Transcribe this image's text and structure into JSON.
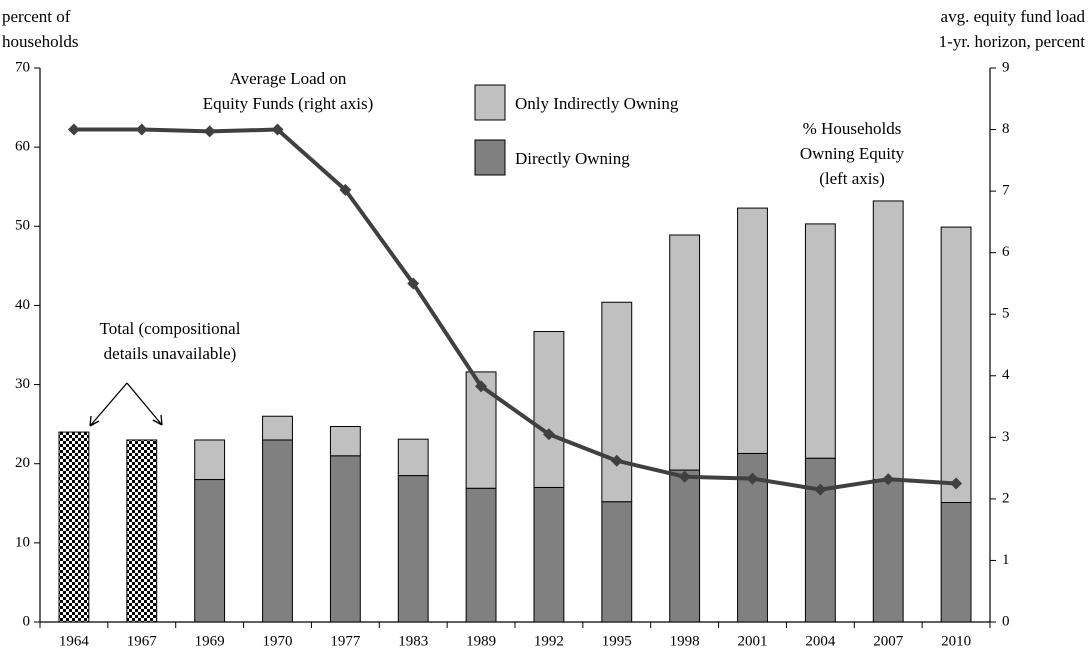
{
  "chart_data": {
    "type": "bar",
    "categories": [
      "1964",
      "1967",
      "1969",
      "1970",
      "1977",
      "1983",
      "1989",
      "1992",
      "1995",
      "1998",
      "2001",
      "2004",
      "2007",
      "2010"
    ],
    "series": [
      {
        "color": "checkered",
        "values": [
          24,
          23,
          null,
          null,
          null,
          null,
          null,
          null,
          null,
          null,
          null,
          null,
          null,
          null
        ]
      },
      {
        "name": "Directly Owning",
        "color": "#808080",
        "values": [
          null,
          null,
          18,
          23,
          21,
          18.5,
          16.9,
          17,
          15.2,
          19.2,
          21.3,
          20.7,
          18,
          15.1
        ]
      },
      {
        "name": "Only Indirectly Owning",
        "color": "#c0c0c0",
        "values": [
          null,
          null,
          5,
          3,
          3.7,
          4.6,
          14.7,
          19.7,
          25.2,
          29.7,
          31,
          29.6,
          35.2,
          34.8
        ]
      },
      {
        "type": "line",
        "axis": "y2",
        "color": "#404040",
        "values": [
          8,
          8,
          7.97,
          8,
          7.02,
          5.5,
          3.83,
          3.05,
          2.62,
          2.36,
          2.33,
          2.15,
          2.32,
          2.25
        ]
      }
    ],
    "ylim": [
      0,
      70
    ],
    "yticks": [
      0,
      10,
      20,
      30,
      40,
      50,
      60,
      70
    ],
    "y2lim": [
      0,
      9
    ],
    "y2ticks": [
      0,
      1,
      2,
      3,
      4,
      5,
      6,
      7,
      8,
      9
    ],
    "y_label": [
      "percent of",
      "households"
    ],
    "y2_label": [
      "avg. equity fund load",
      "1-yr. horizon, percent"
    ],
    "annotations": [
      [
        "Average Load on",
        "Equity Funds (right axis)"
      ],
      [
        "% Households",
        "Owning Equity",
        "(left axis)"
      ],
      [
        "Total (compositional",
        "details unavailable)"
      ]
    ]
  }
}
